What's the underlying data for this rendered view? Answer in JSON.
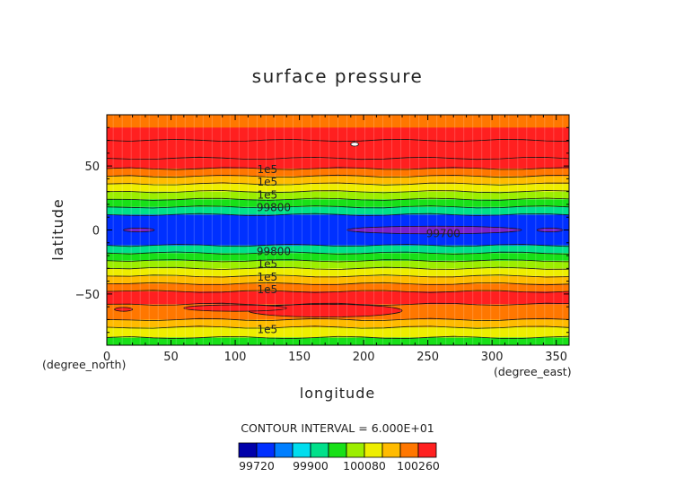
{
  "chart_data": {
    "type": "heatmap",
    "title": "surface pressure",
    "xlabel": "longitude",
    "ylabel": "latitude",
    "x_unit": "(degree_east)",
    "y_unit": "(degree_north)",
    "xlim": [
      0,
      360
    ],
    "ylim": [
      -90,
      90
    ],
    "x_ticks": [
      "0",
      "50",
      "100",
      "150",
      "200",
      "250",
      "300",
      "350"
    ],
    "y_ticks": [
      "50",
      "0",
      "−50"
    ],
    "contour_interval_text": "CONTOUR INTERVAL = 6.000E+01",
    "contour_interval": 60,
    "levels": [
      99660,
      99720,
      99780,
      99840,
      99900,
      99960,
      100020,
      100080,
      100140,
      100200,
      100260,
      100320
    ],
    "colorbar_labels": [
      "99720",
      "99900",
      "100080",
      "100260"
    ],
    "colors": [
      "#0000aa",
      "#0030ff",
      "#007fff",
      "#00ddee",
      "#00e08a",
      "#18e018",
      "#9cee00",
      "#eeee00",
      "#ffbb00",
      "#ff7700",
      "#ff2020"
    ],
    "band_tops_lat": [
      -84,
      -76,
      -70,
      -58,
      -48,
      -42,
      -36,
      -30,
      -24,
      -18,
      -12,
      12,
      18,
      24,
      30,
      36,
      42,
      48,
      56,
      70
    ],
    "band_colors": [
      "#18e018",
      "#eeee00",
      "#ffbb00",
      "#ff7700",
      "#ff2020",
      "#ff7700",
      "#ffbb00",
      "#eeee00",
      "#9cee00",
      "#18e018",
      "#00e08a",
      "#0030ff",
      "#00e08a",
      "#18e018",
      "#9cee00",
      "#eeee00",
      "#ffbb00",
      "#ff7700",
      "#ff2020",
      "#ff7700"
    ],
    "north_red_top_lat": 80,
    "contour_labels": [
      {
        "text": "1e5",
        "lon": 125,
        "lat": 47
      },
      {
        "text": "1e5",
        "lon": 125,
        "lat": 37
      },
      {
        "text": "1e5",
        "lon": 125,
        "lat": 27
      },
      {
        "text": "99800",
        "lon": 130,
        "lat": 17
      },
      {
        "text": "99700",
        "lon": 262,
        "lat": -3
      },
      {
        "text": "99800",
        "lon": 130,
        "lat": -17
      },
      {
        "text": "1e5",
        "lon": 125,
        "lat": -27
      },
      {
        "text": "1e5",
        "lon": 125,
        "lat": -37
      },
      {
        "text": "1e5",
        "lon": 125,
        "lat": -47
      },
      {
        "text": "1e5",
        "lon": 125,
        "lat": -78
      }
    ]
  }
}
